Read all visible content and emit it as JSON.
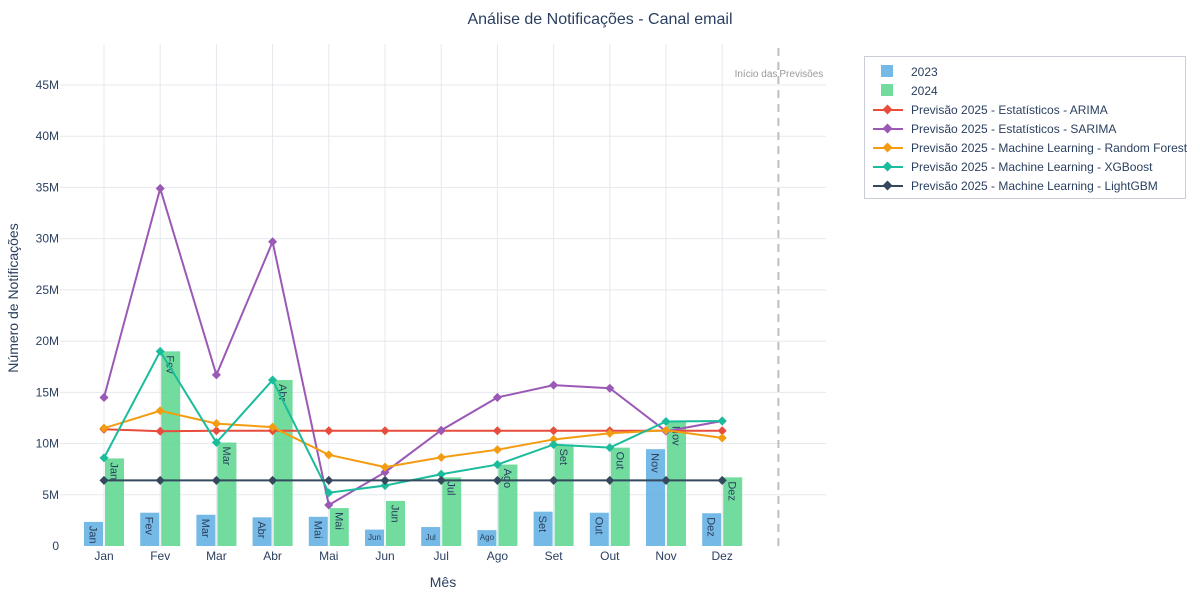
{
  "chart_data": {
    "type": "bar",
    "title": "Análise de Notificações - Canal email",
    "xlabel": "Mês",
    "ylabel": "Número de Notificações",
    "ylim": [
      0,
      49000000
    ],
    "yticks": [
      0,
      5000000,
      10000000,
      15000000,
      20000000,
      25000000,
      30000000,
      35000000,
      40000000,
      45000000
    ],
    "ytick_labels": [
      "0",
      "5M",
      "10M",
      "15M",
      "20M",
      "25M",
      "30M",
      "35M",
      "40M",
      "45M"
    ],
    "categories": [
      "Jan",
      "Fev",
      "Mar",
      "Abr",
      "Mai",
      "Jun",
      "Jul",
      "Ago",
      "Set",
      "Out",
      "Nov",
      "Dez"
    ],
    "grid": true,
    "legend_position": "top-right outside",
    "annotation": {
      "left_text": "Início das",
      "right_text": "Previsões"
    },
    "bar_series": [
      {
        "name": "2023",
        "color": "#5dade2",
        "values": [
          2350000,
          3250000,
          3050000,
          2800000,
          2850000,
          1600000,
          1850000,
          1550000,
          3350000,
          3250000,
          9450000,
          3200000
        ]
      },
      {
        "name": "2024",
        "color": "#58d68d",
        "values": [
          8550000,
          19000000,
          10100000,
          16200000,
          3700000,
          4400000,
          6700000,
          7950000,
          9900000,
          9600000,
          12100000,
          6700000
        ]
      }
    ],
    "line_series": [
      {
        "name": "Previsão 2025 - Estatísticos - ARIMA",
        "color": "#e74c3c",
        "values": [
          11400000,
          11200000,
          11250000,
          11250000,
          11250000,
          11250000,
          11250000,
          11250000,
          11250000,
          11250000,
          11250000,
          11250000
        ]
      },
      {
        "name": "Previsão 2025 - Estatísticos - SARIMA",
        "color": "#9b59b6",
        "values": [
          14500000,
          34900000,
          16700000,
          29700000,
          4000000,
          7200000,
          11300000,
          14500000,
          15700000,
          15400000,
          11200000,
          12200000
        ]
      },
      {
        "name": "Previsão 2025 - Machine Learning - Random Forest",
        "color": "#f39c12",
        "values": [
          11500000,
          13200000,
          11950000,
          11600000,
          8900000,
          7700000,
          8650000,
          9400000,
          10400000,
          11000000,
          11300000,
          10550000
        ]
      },
      {
        "name": "Previsão 2025 - Machine Learning - XGBoost",
        "color": "#1abc9c",
        "values": [
          8600000,
          19000000,
          10100000,
          16200000,
          5200000,
          5900000,
          7000000,
          7950000,
          9900000,
          9600000,
          12150000,
          12200000
        ]
      },
      {
        "name": "Previsão 2025 - Machine Learning - LightGBM",
        "color": "#34495e",
        "values": [
          6400000,
          6400000,
          6400000,
          6400000,
          6400000,
          6400000,
          6400000,
          6400000,
          6400000,
          6400000,
          6400000,
          6400000
        ]
      }
    ]
  }
}
